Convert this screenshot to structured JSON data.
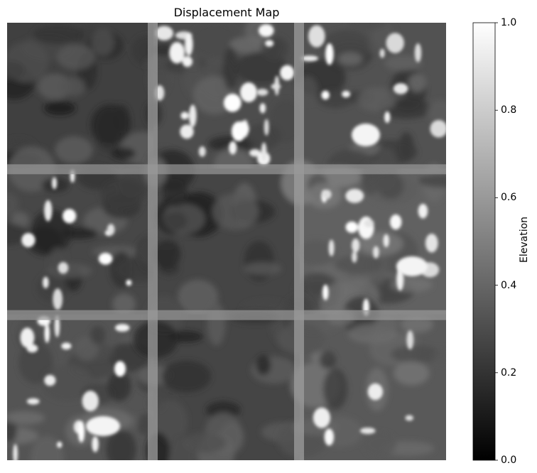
{
  "chart_data": {
    "type": "heatmap",
    "title": "Displacement Map",
    "colormap": "gray",
    "colorbar": {
      "label": "Elevation",
      "range": [
        0,
        1
      ],
      "ticks": [
        "0.0",
        "0.2",
        "0.4",
        "0.6",
        "0.8",
        "1.0"
      ]
    },
    "axes_visible": false,
    "tile_grid": [
      3,
      3
    ],
    "tile_mean_elevation": [
      [
        0.25,
        0.3,
        0.32
      ],
      [
        0.28,
        0.27,
        0.38
      ],
      [
        0.33,
        0.27,
        0.35
      ]
    ]
  }
}
